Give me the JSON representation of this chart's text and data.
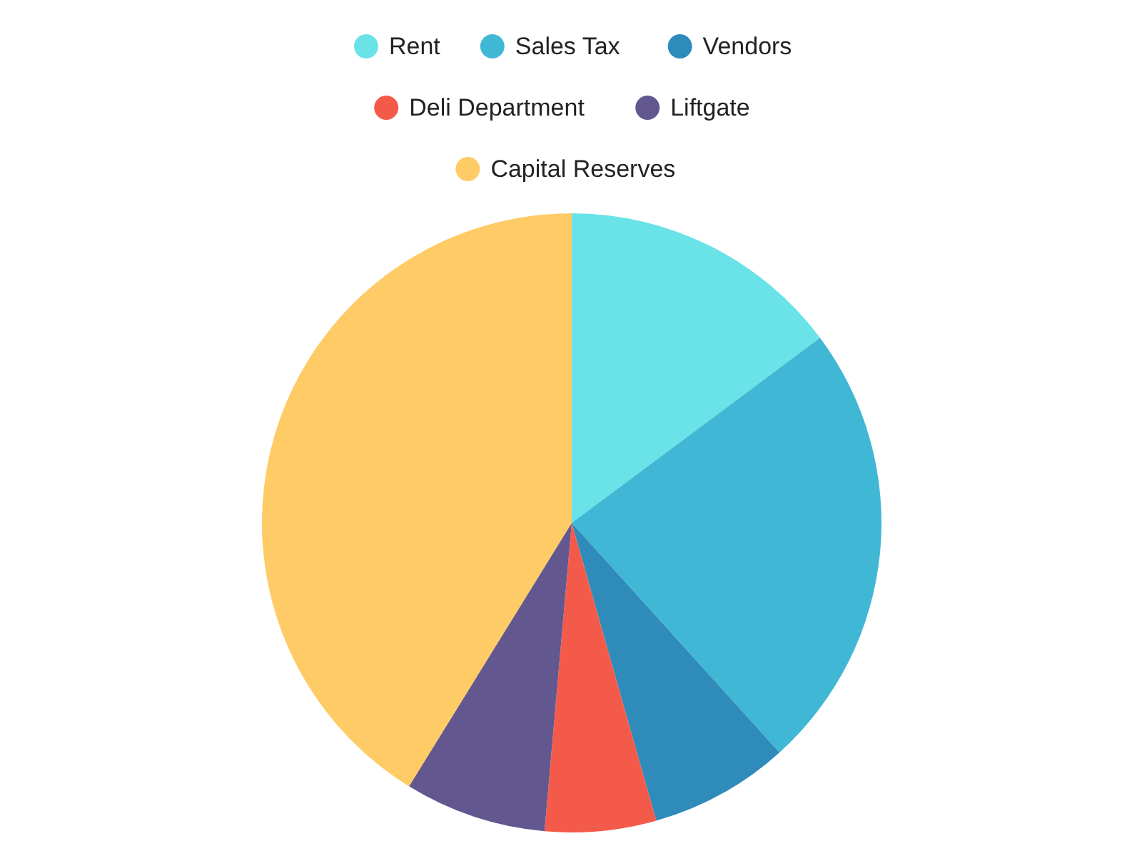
{
  "chart_data": {
    "type": "pie",
    "categories": [
      "Rent",
      "Sales Tax",
      "Vendors",
      "Deli Department",
      "Liftgate",
      "Capital Reserves"
    ],
    "values": [
      14.8,
      23.5,
      7.3,
      5.8,
      7.4,
      41.2
    ],
    "colors": [
      "#6ae3e8",
      "#41b7d6",
      "#2e8bba",
      "#f45a4a",
      "#62588f",
      "#fecb66"
    ],
    "legend": "top"
  }
}
